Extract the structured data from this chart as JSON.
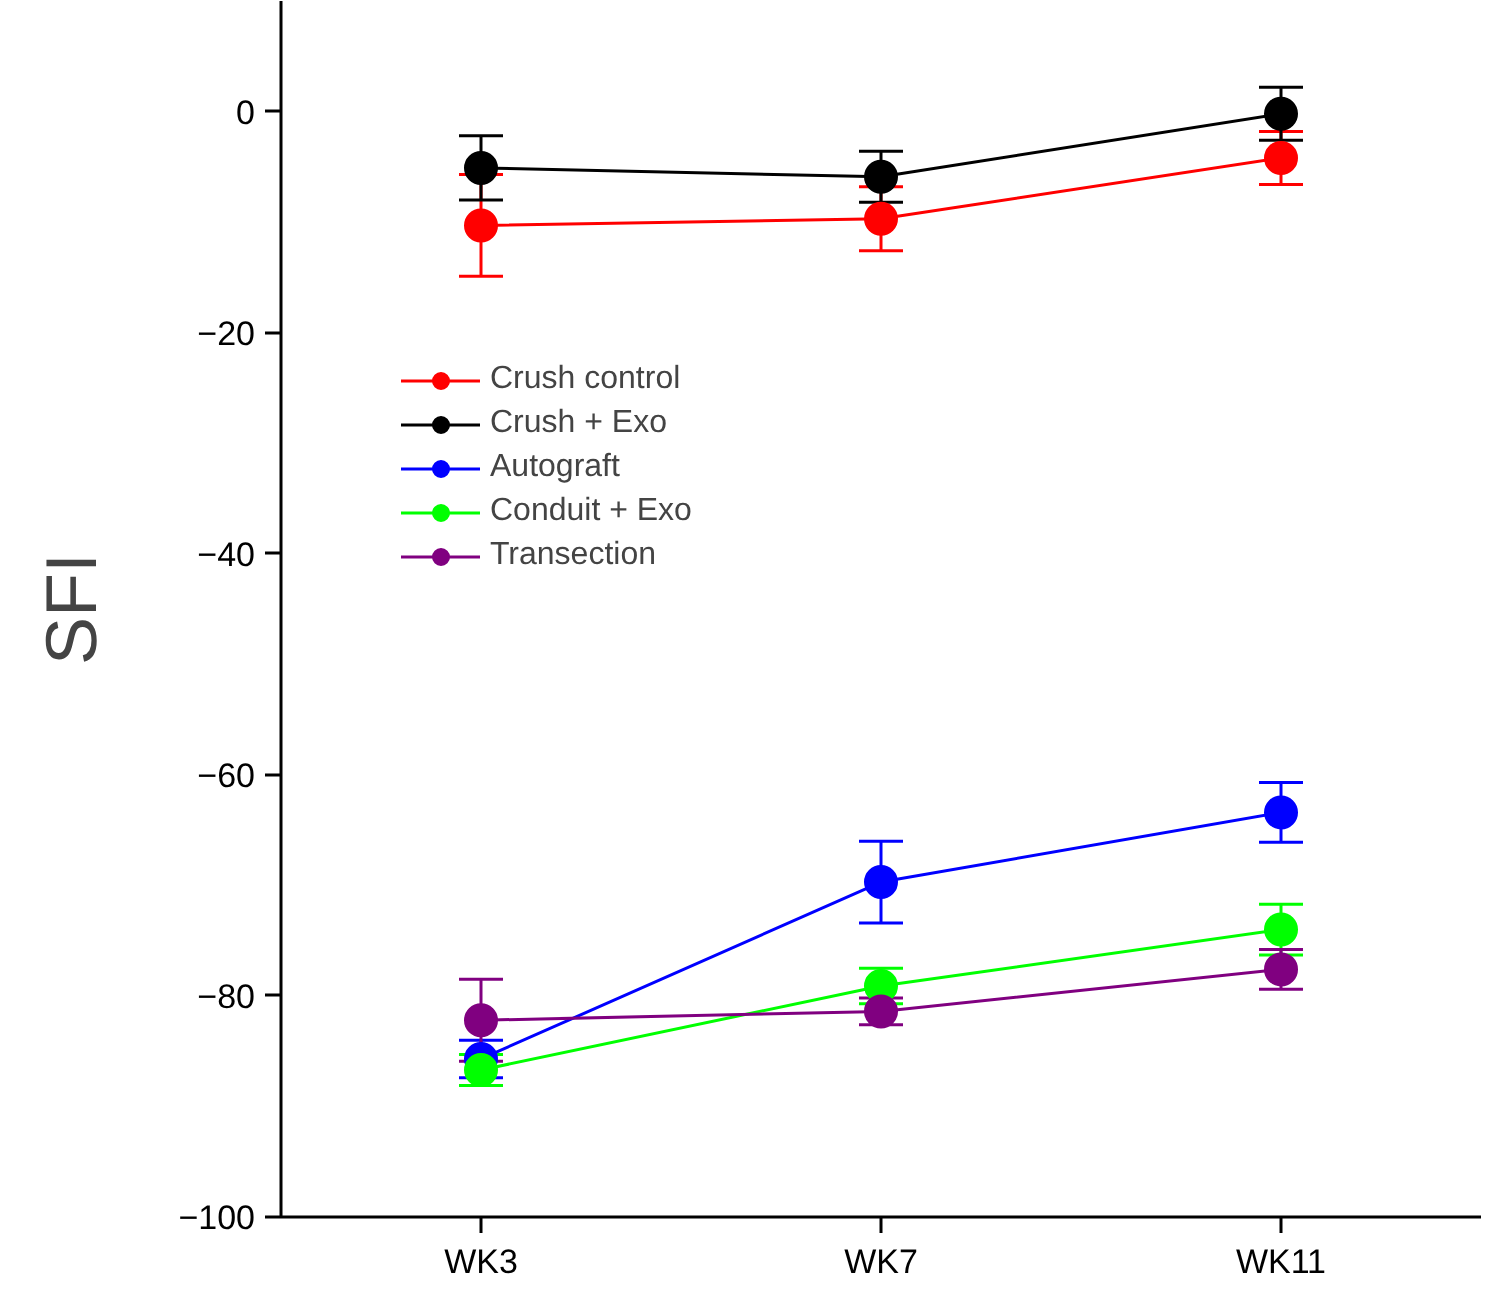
{
  "chart_data": {
    "type": "line",
    "ylabel": "SFI",
    "categories": [
      "WK3",
      "WK7",
      "WK11"
    ],
    "ylim": [
      -100,
      10
    ],
    "yticks": [
      -100,
      -80,
      -60,
      -40,
      -20,
      0
    ],
    "grid": false,
    "legend": "center left",
    "marker": "circle",
    "line_style": "solid",
    "series": [
      {
        "name": "Crush control",
        "color": "#ff0000",
        "values": [
          -10.3,
          -9.7,
          -4.2
        ],
        "errors": [
          4.6,
          2.9,
          2.4
        ]
      },
      {
        "name": "Crush + Exo",
        "color": "#000000",
        "values": [
          -5.1,
          -5.9,
          -0.2
        ],
        "errors": [
          2.9,
          2.3,
          2.4
        ]
      },
      {
        "name": "Autograft",
        "color": "#0000ff",
        "values": [
          -85.7,
          -69.7,
          -63.4
        ],
        "errors": [
          1.7,
          3.7,
          2.7
        ]
      },
      {
        "name": "Conduit + Exo",
        "color": "#00ff00",
        "values": [
          -86.7,
          -79.1,
          -74.0
        ],
        "errors": [
          1.4,
          1.6,
          2.3
        ]
      },
      {
        "name": "Transection",
        "color": "#800080",
        "values": [
          -82.2,
          -81.4,
          -77.6
        ],
        "errors": [
          3.7,
          1.2,
          1.8
        ]
      }
    ]
  }
}
